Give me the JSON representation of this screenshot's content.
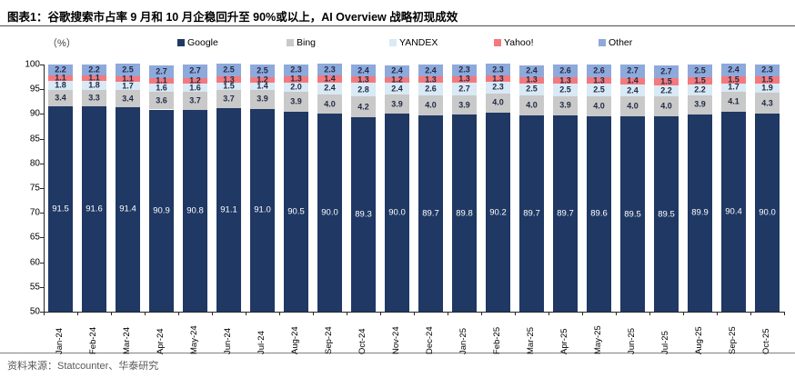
{
  "figure": {
    "title": "图表1：谷歌搜索市占率 9 月和 10 月企稳回升至 90%或以上，AI Overview 战略初现成效",
    "unit_label": "（%）",
    "source": "资料来源：Statcounter、华泰研究"
  },
  "chart_data": {
    "type": "bar",
    "stacked": true,
    "title": "谷歌搜索市占率 9 月和 10 月企稳回升至 90%或以上，AI Overview 战略初现成效",
    "xlabel": "",
    "ylabel": "%",
    "ylim": [
      50,
      100
    ],
    "yticks": [
      50,
      55,
      60,
      65,
      70,
      75,
      80,
      85,
      90,
      95,
      100
    ],
    "grid": false,
    "legend_position": "top",
    "categories": [
      "Jan-24",
      "Feb-24",
      "Mar-24",
      "Apr-24",
      "May-24",
      "Jun-24",
      "Jul-24",
      "Aug-24",
      "Sep-24",
      "Oct-24",
      "Nov-24",
      "Dec-24",
      "Jan-25",
      "Feb-25",
      "Mar-25",
      "Apr-25",
      "May-25",
      "Jun-25",
      "Jul-25",
      "Aug-25",
      "Sep-25",
      "Oct-25"
    ],
    "series": [
      {
        "name": "Google",
        "color": "#1F3864",
        "label_color": "#FFFFFF",
        "values": [
          91.5,
          91.6,
          91.4,
          90.9,
          90.8,
          91.1,
          91.0,
          90.5,
          90.0,
          89.3,
          90.0,
          89.7,
          89.8,
          90.2,
          89.7,
          89.7,
          89.6,
          89.5,
          89.5,
          89.9,
          90.4,
          90.0
        ]
      },
      {
        "name": "Bing",
        "color": "#C9C9C9",
        "label_color": "#1F2A44",
        "values": [
          3.4,
          3.3,
          3.4,
          3.6,
          3.7,
          3.7,
          3.9,
          3.9,
          4.0,
          4.2,
          3.9,
          4.0,
          3.9,
          4.0,
          4.0,
          3.9,
          4.0,
          4.0,
          4.0,
          3.9,
          4.1,
          4.3
        ]
      },
      {
        "name": "YANDEX",
        "color": "#D9E9F5",
        "label_color": "#1F2A44",
        "values": [
          1.8,
          1.8,
          1.7,
          1.6,
          1.6,
          1.5,
          1.4,
          2.0,
          2.4,
          2.8,
          2.4,
          2.6,
          2.7,
          2.3,
          2.5,
          2.5,
          2.5,
          2.4,
          2.2,
          2.2,
          1.7,
          1.9
        ]
      },
      {
        "name": "Yahoo!",
        "color": "#F4797D",
        "label_color": "#1F2A44",
        "values": [
          1.1,
          1.1,
          1.1,
          1.1,
          1.2,
          1.3,
          1.2,
          1.3,
          1.4,
          1.3,
          1.2,
          1.3,
          1.3,
          1.3,
          1.3,
          1.3,
          1.3,
          1.4,
          1.5,
          1.5,
          1.5,
          1.5
        ]
      },
      {
        "name": "Other",
        "color": "#8EA9DB",
        "label_color": "#1F2A44",
        "values": [
          2.2,
          2.2,
          2.5,
          2.7,
          2.7,
          2.5,
          2.5,
          2.3,
          2.3,
          2.4,
          2.4,
          2.4,
          2.3,
          2.3,
          2.4,
          2.6,
          2.6,
          2.7,
          2.7,
          2.5,
          2.4,
          2.3
        ]
      }
    ]
  }
}
